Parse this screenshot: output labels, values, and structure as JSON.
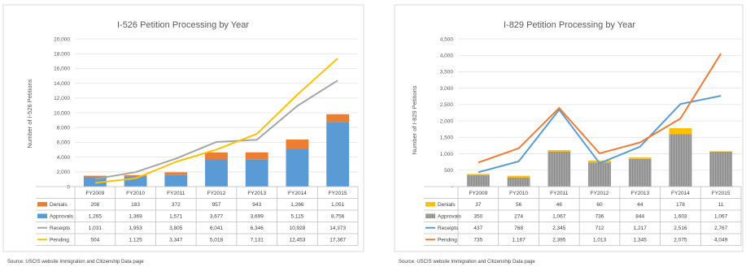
{
  "chart_data": [
    {
      "type": "bar",
      "title": "I-526 Petition Processing by Year",
      "ylabel": "Number of I-526 Petitions",
      "ylim": [
        0,
        20000
      ],
      "yticks": [
        "0",
        "2,000",
        "4,000",
        "6,000",
        "8,000",
        "10,000",
        "12,000",
        "14,000",
        "16,000",
        "18,000",
        "20,000"
      ],
      "categories": [
        "FY2009",
        "FY2010",
        "FY2011",
        "FY2012",
        "FY2013",
        "FY2014",
        "FY2015"
      ],
      "series": [
        {
          "name": "Denials",
          "kind": "bar",
          "color": "#ED7D31",
          "values": [
            208,
            183,
            372,
            957,
            943,
            1266,
            1051
          ],
          "labels": [
            "208",
            "183",
            "372",
            "957",
            "943",
            "1,266",
            "1,051"
          ]
        },
        {
          "name": "Approvals",
          "kind": "bar",
          "color": "#5B9BD5",
          "values": [
            1265,
            1369,
            1571,
            3677,
            3699,
            5115,
            8756
          ],
          "labels": [
            "1,265",
            "1,369",
            "1,571",
            "3,677",
            "3,699",
            "5,115",
            "8,756"
          ]
        },
        {
          "name": "Receipts",
          "kind": "line",
          "color": "#A5A5A5",
          "values": [
            1031,
            1953,
            3805,
            6041,
            6346,
            10928,
            14373
          ],
          "labels": [
            "1,031",
            "1,953",
            "3,805",
            "6,041",
            "6,346",
            "10,928",
            "14,373"
          ]
        },
        {
          "name": "Pending",
          "kind": "line",
          "color": "#FFC000",
          "values": [
            504,
            1125,
            3347,
            5018,
            7131,
            12453,
            17367
          ],
          "labels": [
            "504",
            "1,125",
            "3,347",
            "5,018",
            "7,131",
            "12,453",
            "17,367"
          ]
        }
      ],
      "source": "Source: USCIS website Immigration and Citizenship Data page"
    },
    {
      "type": "bar",
      "title": "I-829 Petition Processing by Year",
      "ylabel": "Number of I-829 Petitions",
      "ylim": [
        0,
        4500
      ],
      "yticks": [
        "-",
        "500",
        "1,000",
        "1,500",
        "2,000",
        "2,500",
        "3,000",
        "3,500",
        "4,000",
        "4,500"
      ],
      "categories": [
        "FY2009",
        "FY2010",
        "FY2011",
        "FY2012",
        "FY2013",
        "FY2014",
        "FY2015"
      ],
      "series": [
        {
          "name": "Denials",
          "kind": "bar",
          "color": "#FFC000",
          "values": [
            37,
            56,
            46,
            60,
            44,
            178,
            11
          ],
          "labels": [
            "37",
            "56",
            "46",
            "60",
            "44",
            "178",
            "11"
          ]
        },
        {
          "name": "Approvals",
          "kind": "bar",
          "color": "#A5A5A5",
          "pattern": "striped",
          "values": [
            350,
            274,
            1067,
            736,
            844,
            1603,
            1067
          ],
          "labels": [
            "350",
            "274",
            "1,067",
            "736",
            "844",
            "1,603",
            "1,067"
          ]
        },
        {
          "name": "Receipts",
          "kind": "line",
          "color": "#5B9BD5",
          "values": [
            437,
            768,
            2345,
            712,
            1217,
            2516,
            2767
          ],
          "labels": [
            "437",
            "768",
            "2,345",
            "712",
            "1,217",
            "2,516",
            "2,767"
          ]
        },
        {
          "name": "Pending",
          "kind": "line",
          "color": "#ED7D31",
          "values": [
            735,
            1167,
            2395,
            1013,
            1345,
            2075,
            4049
          ],
          "labels": [
            "735",
            "1,167",
            "2,395",
            "1,013",
            "1,345",
            "2,075",
            "4,049"
          ]
        }
      ],
      "source": "Source: USCIS website Immigration and Citizenship Data page"
    }
  ]
}
